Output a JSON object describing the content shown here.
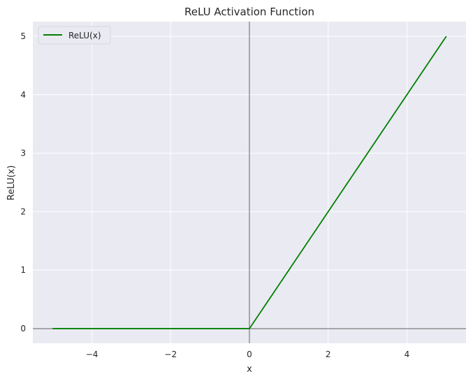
{
  "chart_data": {
    "type": "line",
    "title": "ReLU Activation Function",
    "xlabel": "x",
    "ylabel": "ReLU(x)",
    "xlim": [
      -5.5,
      5.5
    ],
    "ylim": [
      -0.25,
      5.25
    ],
    "xticks": [
      -4,
      -2,
      0,
      2,
      4
    ],
    "yticks": [
      0,
      1,
      2,
      3,
      4,
      5
    ],
    "xtick_labels": [
      "−4",
      "−2",
      "0",
      "2",
      "4"
    ],
    "ytick_labels": [
      "0",
      "1",
      "2",
      "3",
      "4",
      "5"
    ],
    "grid": true,
    "background_color": "#eaeaf2",
    "grid_color": "#ffffff",
    "axis_line_color": "#000000",
    "legend": {
      "placement": "top-left",
      "entries": [
        {
          "label": "ReLU(x)",
          "color": "#008000"
        }
      ]
    },
    "series": [
      {
        "name": "ReLU(x)",
        "color": "#008000",
        "x": [
          -5,
          0,
          5
        ],
        "y": [
          0,
          0,
          5
        ]
      }
    ]
  }
}
